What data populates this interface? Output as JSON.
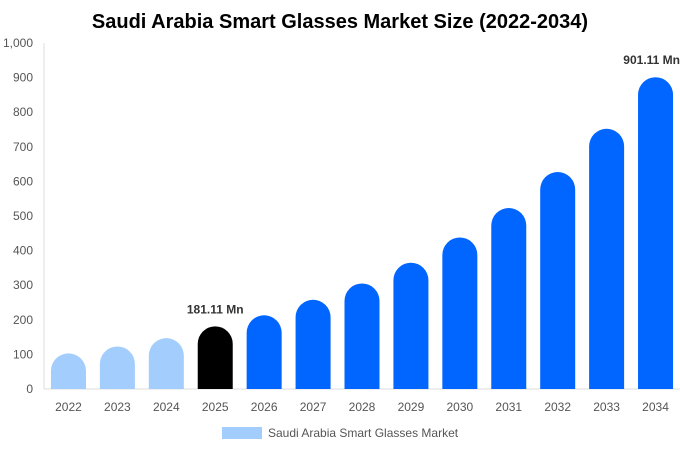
{
  "chart_data": {
    "type": "bar",
    "title": "Saudi Arabia Smart Glasses Market Size (2022-2034)",
    "xlabel": "",
    "ylabel": "",
    "ylim": [
      0,
      1000
    ],
    "yticks": [
      "0",
      "100",
      "200",
      "300",
      "400",
      "500",
      "600",
      "700",
      "800",
      "900",
      "1,000"
    ],
    "categories": [
      "2022",
      "2023",
      "2024",
      "2025",
      "2026",
      "2027",
      "2028",
      "2029",
      "2030",
      "2031",
      "2032",
      "2033",
      "2034"
    ],
    "series": [
      {
        "name": "Saudi Arabia Smart Glasses Market",
        "values": [
          103,
          123,
          147,
          181.11,
          213,
          258,
          305,
          365,
          438,
          523,
          627,
          752,
          901.11
        ]
      }
    ],
    "bar_colors": {
      "historical": "#a3cdfc",
      "base_year": "#000000",
      "forecast": "#0066ff"
    },
    "data_labels": [
      {
        "category": "2025",
        "text": "181.11 Mn"
      },
      {
        "category": "2034",
        "text": "901.11 Mn"
      }
    ],
    "legend": {
      "position": "bottom",
      "label": "Saudi Arabia Smart Glasses Market",
      "color": "#a3cdfc"
    },
    "grid": false
  }
}
